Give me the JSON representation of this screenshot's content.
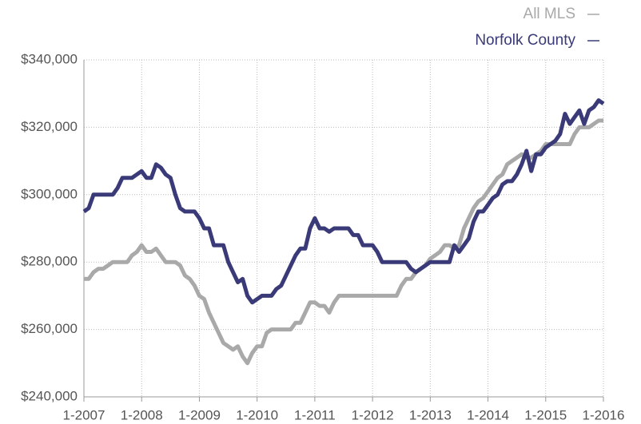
{
  "chart_data": {
    "type": "line",
    "x": [
      "2007-01",
      "2007-02",
      "2007-03",
      "2007-04",
      "2007-05",
      "2007-06",
      "2007-07",
      "2007-08",
      "2007-09",
      "2007-10",
      "2007-11",
      "2007-12",
      "2008-01",
      "2008-02",
      "2008-03",
      "2008-04",
      "2008-05",
      "2008-06",
      "2008-07",
      "2008-08",
      "2008-09",
      "2008-10",
      "2008-11",
      "2008-12",
      "2009-01",
      "2009-02",
      "2009-03",
      "2009-04",
      "2009-05",
      "2009-06",
      "2009-07",
      "2009-08",
      "2009-09",
      "2009-10",
      "2009-11",
      "2009-12",
      "2010-01",
      "2010-02",
      "2010-03",
      "2010-04",
      "2010-05",
      "2010-06",
      "2010-07",
      "2010-08",
      "2010-09",
      "2010-10",
      "2010-11",
      "2010-12",
      "2011-01",
      "2011-02",
      "2011-03",
      "2011-04",
      "2011-05",
      "2011-06",
      "2011-07",
      "2011-08",
      "2011-09",
      "2011-10",
      "2011-11",
      "2011-12",
      "2012-01",
      "2012-02",
      "2012-03",
      "2012-04",
      "2012-05",
      "2012-06",
      "2012-07",
      "2012-08",
      "2012-09",
      "2012-10",
      "2012-11",
      "2012-12",
      "2013-01",
      "2013-02",
      "2013-03",
      "2013-04",
      "2013-05",
      "2013-06",
      "2013-07",
      "2013-08",
      "2013-09",
      "2013-10",
      "2013-11",
      "2013-12",
      "2014-01",
      "2014-02",
      "2014-03",
      "2014-04",
      "2014-05",
      "2014-06",
      "2014-07",
      "2014-08",
      "2014-09",
      "2014-10",
      "2014-11",
      "2014-12",
      "2015-01",
      "2015-02",
      "2015-03",
      "2015-04",
      "2015-05",
      "2015-06",
      "2015-07",
      "2015-08",
      "2015-09",
      "2015-10",
      "2015-11",
      "2015-12",
      "2016-01"
    ],
    "series": [
      {
        "name": "All MLS",
        "color": "#a9a9a9",
        "values": [
          275000,
          275000,
          277000,
          278000,
          278000,
          279000,
          280000,
          280000,
          280000,
          280000,
          282000,
          283000,
          285000,
          283000,
          283000,
          284000,
          282000,
          280000,
          280000,
          280000,
          279000,
          276000,
          275000,
          273000,
          270000,
          269000,
          265000,
          262000,
          259000,
          256000,
          255000,
          254000,
          255000,
          252000,
          250000,
          253000,
          255000,
          255000,
          259000,
          260000,
          260000,
          260000,
          260000,
          260000,
          262000,
          262000,
          265000,
          268000,
          268000,
          267000,
          267000,
          265000,
          268000,
          270000,
          270000,
          270000,
          270000,
          270000,
          270000,
          270000,
          270000,
          270000,
          270000,
          270000,
          270000,
          270000,
          273000,
          275000,
          275000,
          277000,
          278000,
          279000,
          281000,
          282000,
          283000,
          285000,
          285000,
          284000,
          285000,
          290000,
          293000,
          296000,
          298000,
          299000,
          301000,
          303000,
          305000,
          306000,
          309000,
          310000,
          311000,
          312000,
          311000,
          311000,
          312000,
          313000,
          315000,
          315000,
          315000,
          315000,
          315000,
          315000,
          318000,
          320000,
          320000,
          320000,
          321000,
          322000,
          322000
        ]
      },
      {
        "name": "Norfolk County",
        "color": "#3a3a78",
        "values": [
          295000,
          296000,
          300000,
          300000,
          300000,
          300000,
          300000,
          302000,
          305000,
          305000,
          305000,
          306000,
          307000,
          305000,
          305000,
          309000,
          308000,
          306000,
          305000,
          300000,
          296000,
          295000,
          295000,
          295000,
          293000,
          290000,
          290000,
          285000,
          285000,
          285000,
          280000,
          277000,
          274000,
          275000,
          270000,
          268000,
          269000,
          270000,
          270000,
          270000,
          272000,
          273000,
          276000,
          279000,
          282000,
          284000,
          284000,
          290000,
          293000,
          290000,
          290000,
          289000,
          290000,
          290000,
          290000,
          290000,
          288000,
          288000,
          285000,
          285000,
          285000,
          283000,
          280000,
          280000,
          280000,
          280000,
          280000,
          280000,
          278000,
          277000,
          278000,
          279000,
          280000,
          280000,
          280000,
          280000,
          280000,
          285000,
          283000,
          285000,
          287000,
          292000,
          295000,
          295000,
          297000,
          299000,
          300000,
          303000,
          304000,
          304000,
          306000,
          309000,
          313000,
          307000,
          312000,
          312000,
          314000,
          315000,
          316000,
          318000,
          324000,
          321000,
          323000,
          325000,
          321000,
          325000,
          326000,
          328000,
          327000
        ]
      }
    ],
    "xlim": [
      "2007-01",
      "2016-01"
    ],
    "xticks": [
      {
        "value": "2007-01",
        "label": "1-2007"
      },
      {
        "value": "2008-01",
        "label": "1-2008"
      },
      {
        "value": "2009-01",
        "label": "1-2009"
      },
      {
        "value": "2010-01",
        "label": "1-2010"
      },
      {
        "value": "2011-01",
        "label": "1-2011"
      },
      {
        "value": "2012-01",
        "label": "1-2012"
      },
      {
        "value": "2013-01",
        "label": "1-2013"
      },
      {
        "value": "2014-01",
        "label": "1-2014"
      },
      {
        "value": "2015-01",
        "label": "1-2015"
      },
      {
        "value": "2016-01",
        "label": "1-2016"
      }
    ],
    "ylim": [
      240000,
      340000
    ],
    "yticks": [
      {
        "value": 240000,
        "label": "$240,000"
      },
      {
        "value": 260000,
        "label": "$260,000"
      },
      {
        "value": 280000,
        "label": "$280,000"
      },
      {
        "value": 300000,
        "label": "$300,000"
      },
      {
        "value": 320000,
        "label": "$320,000"
      },
      {
        "value": 340000,
        "label": "$340,000"
      }
    ],
    "grid": true,
    "legend": "top-right"
  }
}
